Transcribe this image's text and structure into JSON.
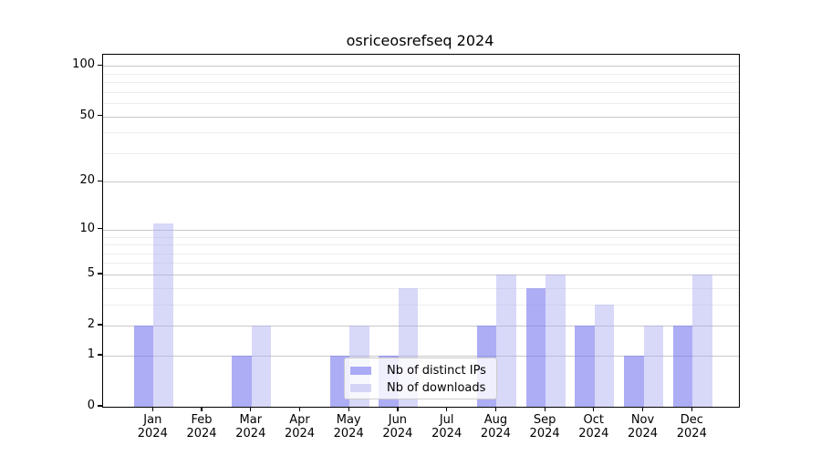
{
  "title": "osriceosrefseq 2024",
  "chart_data": {
    "type": "bar",
    "title": "osriceosrefseq 2024",
    "categories": [
      "Jan",
      "Feb",
      "Mar",
      "Apr",
      "May",
      "Jun",
      "Jul",
      "Aug",
      "Sep",
      "Oct",
      "Nov",
      "Dec"
    ],
    "category_year": "2024",
    "series": [
      {
        "name": "Nb of distinct IPs",
        "color": "rgba(123,123,240,0.62)",
        "values": [
          2,
          0,
          1,
          0,
          1,
          1,
          0,
          2,
          4,
          2,
          1,
          2
        ]
      },
      {
        "name": "Nb of downloads",
        "color": "rgba(168,168,240,0.45)",
        "values": [
          11,
          0,
          2,
          0,
          2,
          4,
          0,
          5,
          5,
          3,
          2,
          5
        ]
      }
    ],
    "yscale": "log1p",
    "ylim": [
      0,
      116
    ],
    "y_major_ticks": [
      0,
      1,
      2,
      5,
      10,
      20,
      50,
      100
    ],
    "y_minor_ticks": [
      3,
      4,
      6,
      7,
      8,
      9,
      30,
      40,
      60,
      70,
      80,
      90
    ],
    "grid": "on",
    "legend_position": "lower center inside",
    "colors": {
      "grid_major": "#c8c8c8",
      "grid_minor": "#ededed",
      "axis": "#000000",
      "legend_border": "#cccccc"
    }
  }
}
